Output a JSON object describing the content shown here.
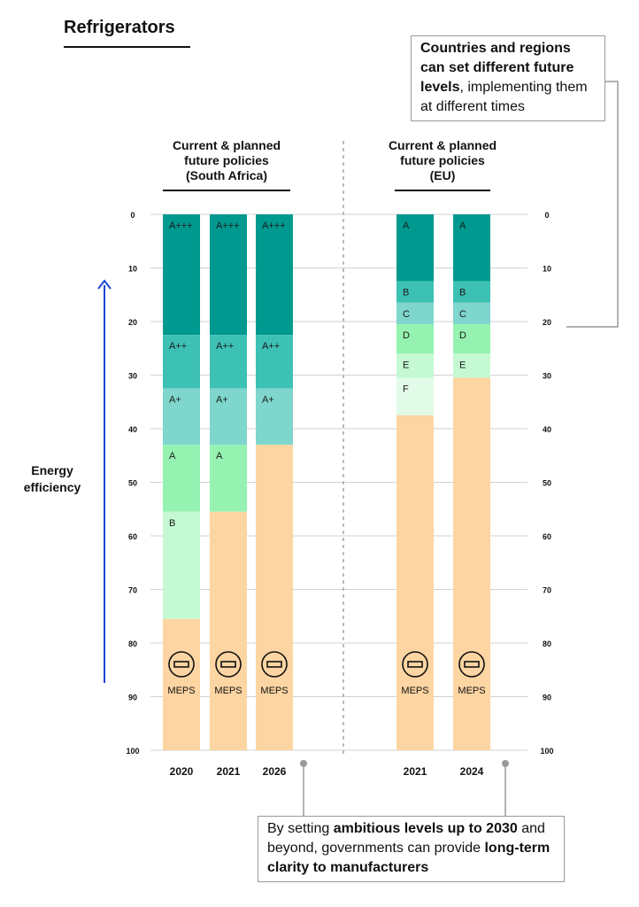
{
  "page": {
    "title": "Refrigerators",
    "y_axis_label": "Energy efficiency"
  },
  "groups": [
    {
      "heading_lines": [
        "Current & planned",
        "future policies",
        "(South Africa)"
      ]
    },
    {
      "heading_lines": [
        "Current & planned",
        "future policies",
        "(EU)"
      ]
    }
  ],
  "callouts": {
    "top": {
      "segments": [
        {
          "text": "Countries and regions can set different future levels",
          "bold": true
        },
        {
          "text": ", implementing them at different times",
          "bold": false
        }
      ]
    },
    "bottom": {
      "segments": [
        {
          "text": "By setting ",
          "bold": false
        },
        {
          "text": "ambitious levels up to 2030",
          "bold": true
        },
        {
          "text": " and beyond, governments can provide ",
          "bold": false
        },
        {
          "text": "long-term clarity to manufacturers",
          "bold": true
        }
      ]
    }
  },
  "chart_data": {
    "type": "bar",
    "stacked": true,
    "y_axis": {
      "label": "Energy efficiency",
      "ylim": [
        0,
        100
      ],
      "inverted": true,
      "ticks": [
        0,
        10,
        20,
        30,
        40,
        50,
        60,
        70,
        80,
        90,
        100
      ]
    },
    "grid": true,
    "minimum_label": "MEPS",
    "colors": {
      "A+++": "#00998f",
      "A++": "#3ec1b5",
      "A+": "#7ed6cc",
      "A": "#00998f",
      "B": "#3ec1b5",
      "C": "#7ed6cc",
      "D": "#95f2b1",
      "E": "#c4f9d3",
      "F": "#e2fbe9",
      "SA_A": "#95f2b1",
      "SA_B": "#c4f9d3",
      "MEPS_area": "#fdd5a2",
      "arrow": "#1a45d8"
    },
    "bars": [
      {
        "group": "South Africa",
        "category": "2020",
        "segments": [
          {
            "label": "A+++",
            "from": 0,
            "to": 22.5,
            "color_key": "A+++"
          },
          {
            "label": "A++",
            "from": 22.5,
            "to": 32.5,
            "color_key": "A++"
          },
          {
            "label": "A+",
            "from": 32.5,
            "to": 43,
            "color_key": "A+"
          },
          {
            "label": "A",
            "from": 43,
            "to": 55.5,
            "color_key": "SA_A"
          },
          {
            "label": "B",
            "from": 55.5,
            "to": 75.5,
            "color_key": "SA_B"
          }
        ],
        "meps_from": 75.5
      },
      {
        "group": "South Africa",
        "category": "2021",
        "segments": [
          {
            "label": "A+++",
            "from": 0,
            "to": 22.5,
            "color_key": "A+++"
          },
          {
            "label": "A++",
            "from": 22.5,
            "to": 32.5,
            "color_key": "A++"
          },
          {
            "label": "A+",
            "from": 32.5,
            "to": 43,
            "color_key": "A+"
          },
          {
            "label": "A",
            "from": 43,
            "to": 55.5,
            "color_key": "SA_A"
          }
        ],
        "meps_from": 55.5
      },
      {
        "group": "South Africa",
        "category": "2026",
        "segments": [
          {
            "label": "A+++",
            "from": 0,
            "to": 22.5,
            "color_key": "A+++"
          },
          {
            "label": "A++",
            "from": 22.5,
            "to": 32.5,
            "color_key": "A++"
          },
          {
            "label": "A+",
            "from": 32.5,
            "to": 43,
            "color_key": "A+"
          }
        ],
        "meps_from": 43
      },
      {
        "group": "EU",
        "category": "2021",
        "segments": [
          {
            "label": "A",
            "from": 0,
            "to": 12.5,
            "color_key": "A"
          },
          {
            "label": "B",
            "from": 12.5,
            "to": 16.5,
            "color_key": "B"
          },
          {
            "label": "C",
            "from": 16.5,
            "to": 20.5,
            "color_key": "C"
          },
          {
            "label": "D",
            "from": 20.5,
            "to": 26,
            "color_key": "D"
          },
          {
            "label": "E",
            "from": 26,
            "to": 30.5,
            "color_key": "E"
          },
          {
            "label": "F",
            "from": 30.5,
            "to": 37.5,
            "color_key": "F"
          }
        ],
        "meps_from": 37.5
      },
      {
        "group": "EU",
        "category": "2024",
        "segments": [
          {
            "label": "A",
            "from": 0,
            "to": 12.5,
            "color_key": "A"
          },
          {
            "label": "B",
            "from": 12.5,
            "to": 16.5,
            "color_key": "B"
          },
          {
            "label": "C",
            "from": 16.5,
            "to": 20.5,
            "color_key": "C"
          },
          {
            "label": "D",
            "from": 20.5,
            "to": 26,
            "color_key": "D"
          },
          {
            "label": "E",
            "from": 26,
            "to": 30.5,
            "color_key": "E"
          }
        ],
        "meps_from": 30.5
      }
    ]
  }
}
